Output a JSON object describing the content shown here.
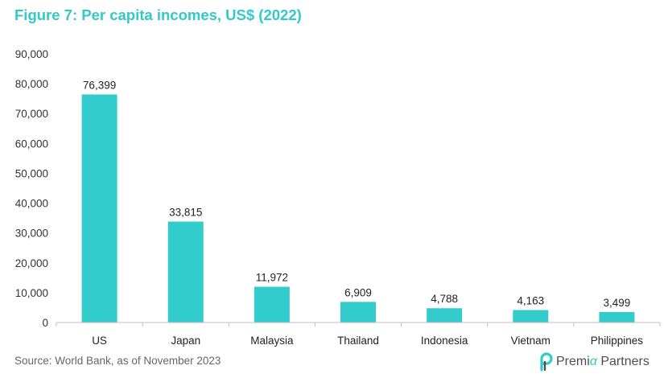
{
  "header": {
    "title": "Figure 7: Per capita incomes, US$ (2022)"
  },
  "footer": {
    "source": "Source: World Bank, as of November 2023"
  },
  "logo": {
    "brand_prefix": "Premi",
    "brand_accent": "α",
    "brand_suffix": "Partners",
    "icon": "premia-p-logo-icon"
  },
  "colors": {
    "bar": "#33cccc",
    "title": "#33c9c9",
    "axis": "#bfbfbf"
  },
  "chart_data": {
    "type": "bar",
    "title": "Figure 7: Per capita incomes, US$ (2022)",
    "xlabel": "",
    "ylabel": "",
    "categories": [
      "US",
      "Japan",
      "Malaysia",
      "Thailand",
      "Indonesia",
      "Vietnam",
      "Philippines"
    ],
    "values": [
      76399,
      33815,
      11972,
      6909,
      4788,
      4163,
      3499
    ],
    "data_labels": [
      "76,399",
      "33,815",
      "11,972",
      "6,909",
      "4,788",
      "4,163",
      "3,499"
    ],
    "ylim": [
      0,
      90000
    ],
    "yticks": [
      0,
      10000,
      20000,
      30000,
      40000,
      50000,
      60000,
      70000,
      80000,
      90000
    ],
    "ytick_labels": [
      "0",
      "10,000",
      "20,000",
      "30,000",
      "40,000",
      "50,000",
      "60,000",
      "70,000",
      "80,000",
      "90,000"
    ],
    "grid": false,
    "legend": "none"
  }
}
